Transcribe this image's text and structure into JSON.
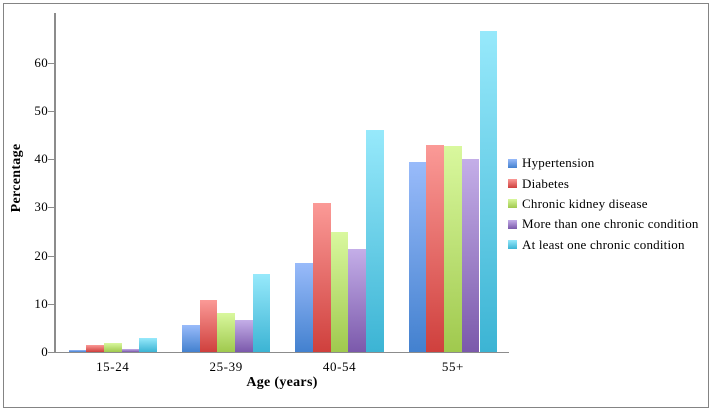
{
  "chart_data": {
    "type": "bar",
    "title": "",
    "xlabel": "Age (years)",
    "ylabel": "Percentage",
    "categories": [
      "15-24",
      "25-39",
      "40-54",
      "55+"
    ],
    "series": [
      {
        "name": "Hypertension",
        "color_top": "#99bbfa",
        "color_bottom": "#4381cf",
        "values": [
          0.4,
          5.5,
          18.4,
          39.3
        ]
      },
      {
        "name": "Diabetes",
        "color_top": "#fb9a97",
        "color_bottom": "#cf403d",
        "values": [
          1.4,
          10.7,
          30.8,
          43.0
        ]
      },
      {
        "name": "Chronic kidney disease",
        "color_top": "#d9f89e",
        "color_bottom": "#a0c94e",
        "values": [
          1.8,
          8.0,
          24.8,
          42.8
        ]
      },
      {
        "name": "More than one chronic condition",
        "color_top": "#c4aee8",
        "color_bottom": "#7b59ab",
        "values": [
          0.7,
          6.6,
          21.3,
          40.0
        ]
      },
      {
        "name": "At least one chronic condition",
        "color_top": "#97e9fb",
        "color_bottom": "#3cb4d4",
        "values": [
          2.9,
          16.1,
          46.0,
          66.6
        ]
      }
    ],
    "yticks": [
      0,
      10,
      20,
      30,
      40,
      50,
      60
    ],
    "ylim": [
      0,
      70
    ],
    "grid": false,
    "legend_position": "right"
  },
  "colors": {
    "axis": "#8c8c8c",
    "frame": "#848484",
    "text": "#000000"
  }
}
